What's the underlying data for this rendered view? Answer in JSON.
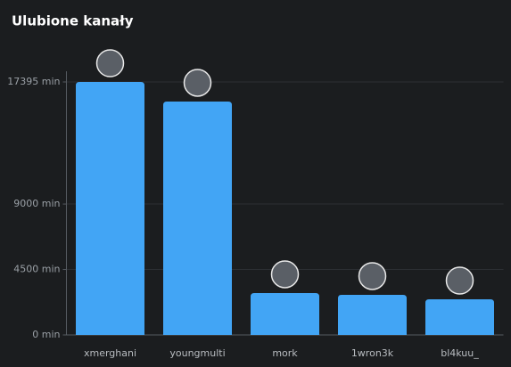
{
  "chart_data": {
    "type": "bar",
    "title": "Ulubione kanały",
    "categories": [
      "xmerghani",
      "youngmulti",
      "mork",
      "1wron3k",
      "bl4kuu_"
    ],
    "values": [
      17395,
      16050,
      2880,
      2760,
      2450
    ],
    "color": "#42a5f5",
    "ylim": [
      0,
      17395
    ],
    "yticks": [
      {
        "value": 0,
        "label": "0 min"
      },
      {
        "value": 4500,
        "label": "4500 min"
      },
      {
        "value": 9000,
        "label": "9000 min"
      },
      {
        "value": 17395,
        "label": "17395 min"
      }
    ],
    "grid": true
  }
}
